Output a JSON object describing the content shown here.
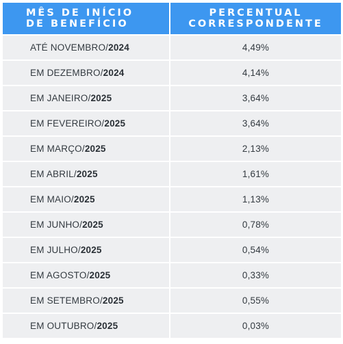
{
  "header": {
    "col1_line1": "MÊS DE INÍCIO",
    "col1_line2": "DE BENEFÍCIO",
    "col2_line1": "PERCENTUAL",
    "col2_line2": "CORRESPONDENTE"
  },
  "rows": [
    {
      "month": "ATÉ NOVEMBRO/",
      "year": "2024",
      "percent": "4,49%"
    },
    {
      "month": "EM DEZEMBRO/",
      "year": "2024",
      "percent": "4,14%"
    },
    {
      "month": "EM JANEIRO/",
      "year": "2025",
      "percent": "3,64%"
    },
    {
      "month": "EM FEVEREIRO/",
      "year": "2025",
      "percent": "3,64%"
    },
    {
      "month": "EM MARÇO/",
      "year": "2025",
      "percent": "2,13%"
    },
    {
      "month": "EM ABRIL/",
      "year": "2025",
      "percent": "1,61%"
    },
    {
      "month": "EM MAIO/",
      "year": "2025",
      "percent": "1,13%"
    },
    {
      "month": "EM JUNHO/",
      "year": "2025",
      "percent": "0,78%"
    },
    {
      "month": "EM JULHO/",
      "year": "2025",
      "percent": "0,54%"
    },
    {
      "month": "EM AGOSTO/",
      "year": "2025",
      "percent": "0,33%"
    },
    {
      "month": "EM SETEMBRO/",
      "year": "2025",
      "percent": "0,55%"
    },
    {
      "month": "EM OUTUBRO/",
      "year": "2025",
      "percent": "0,03%"
    }
  ]
}
